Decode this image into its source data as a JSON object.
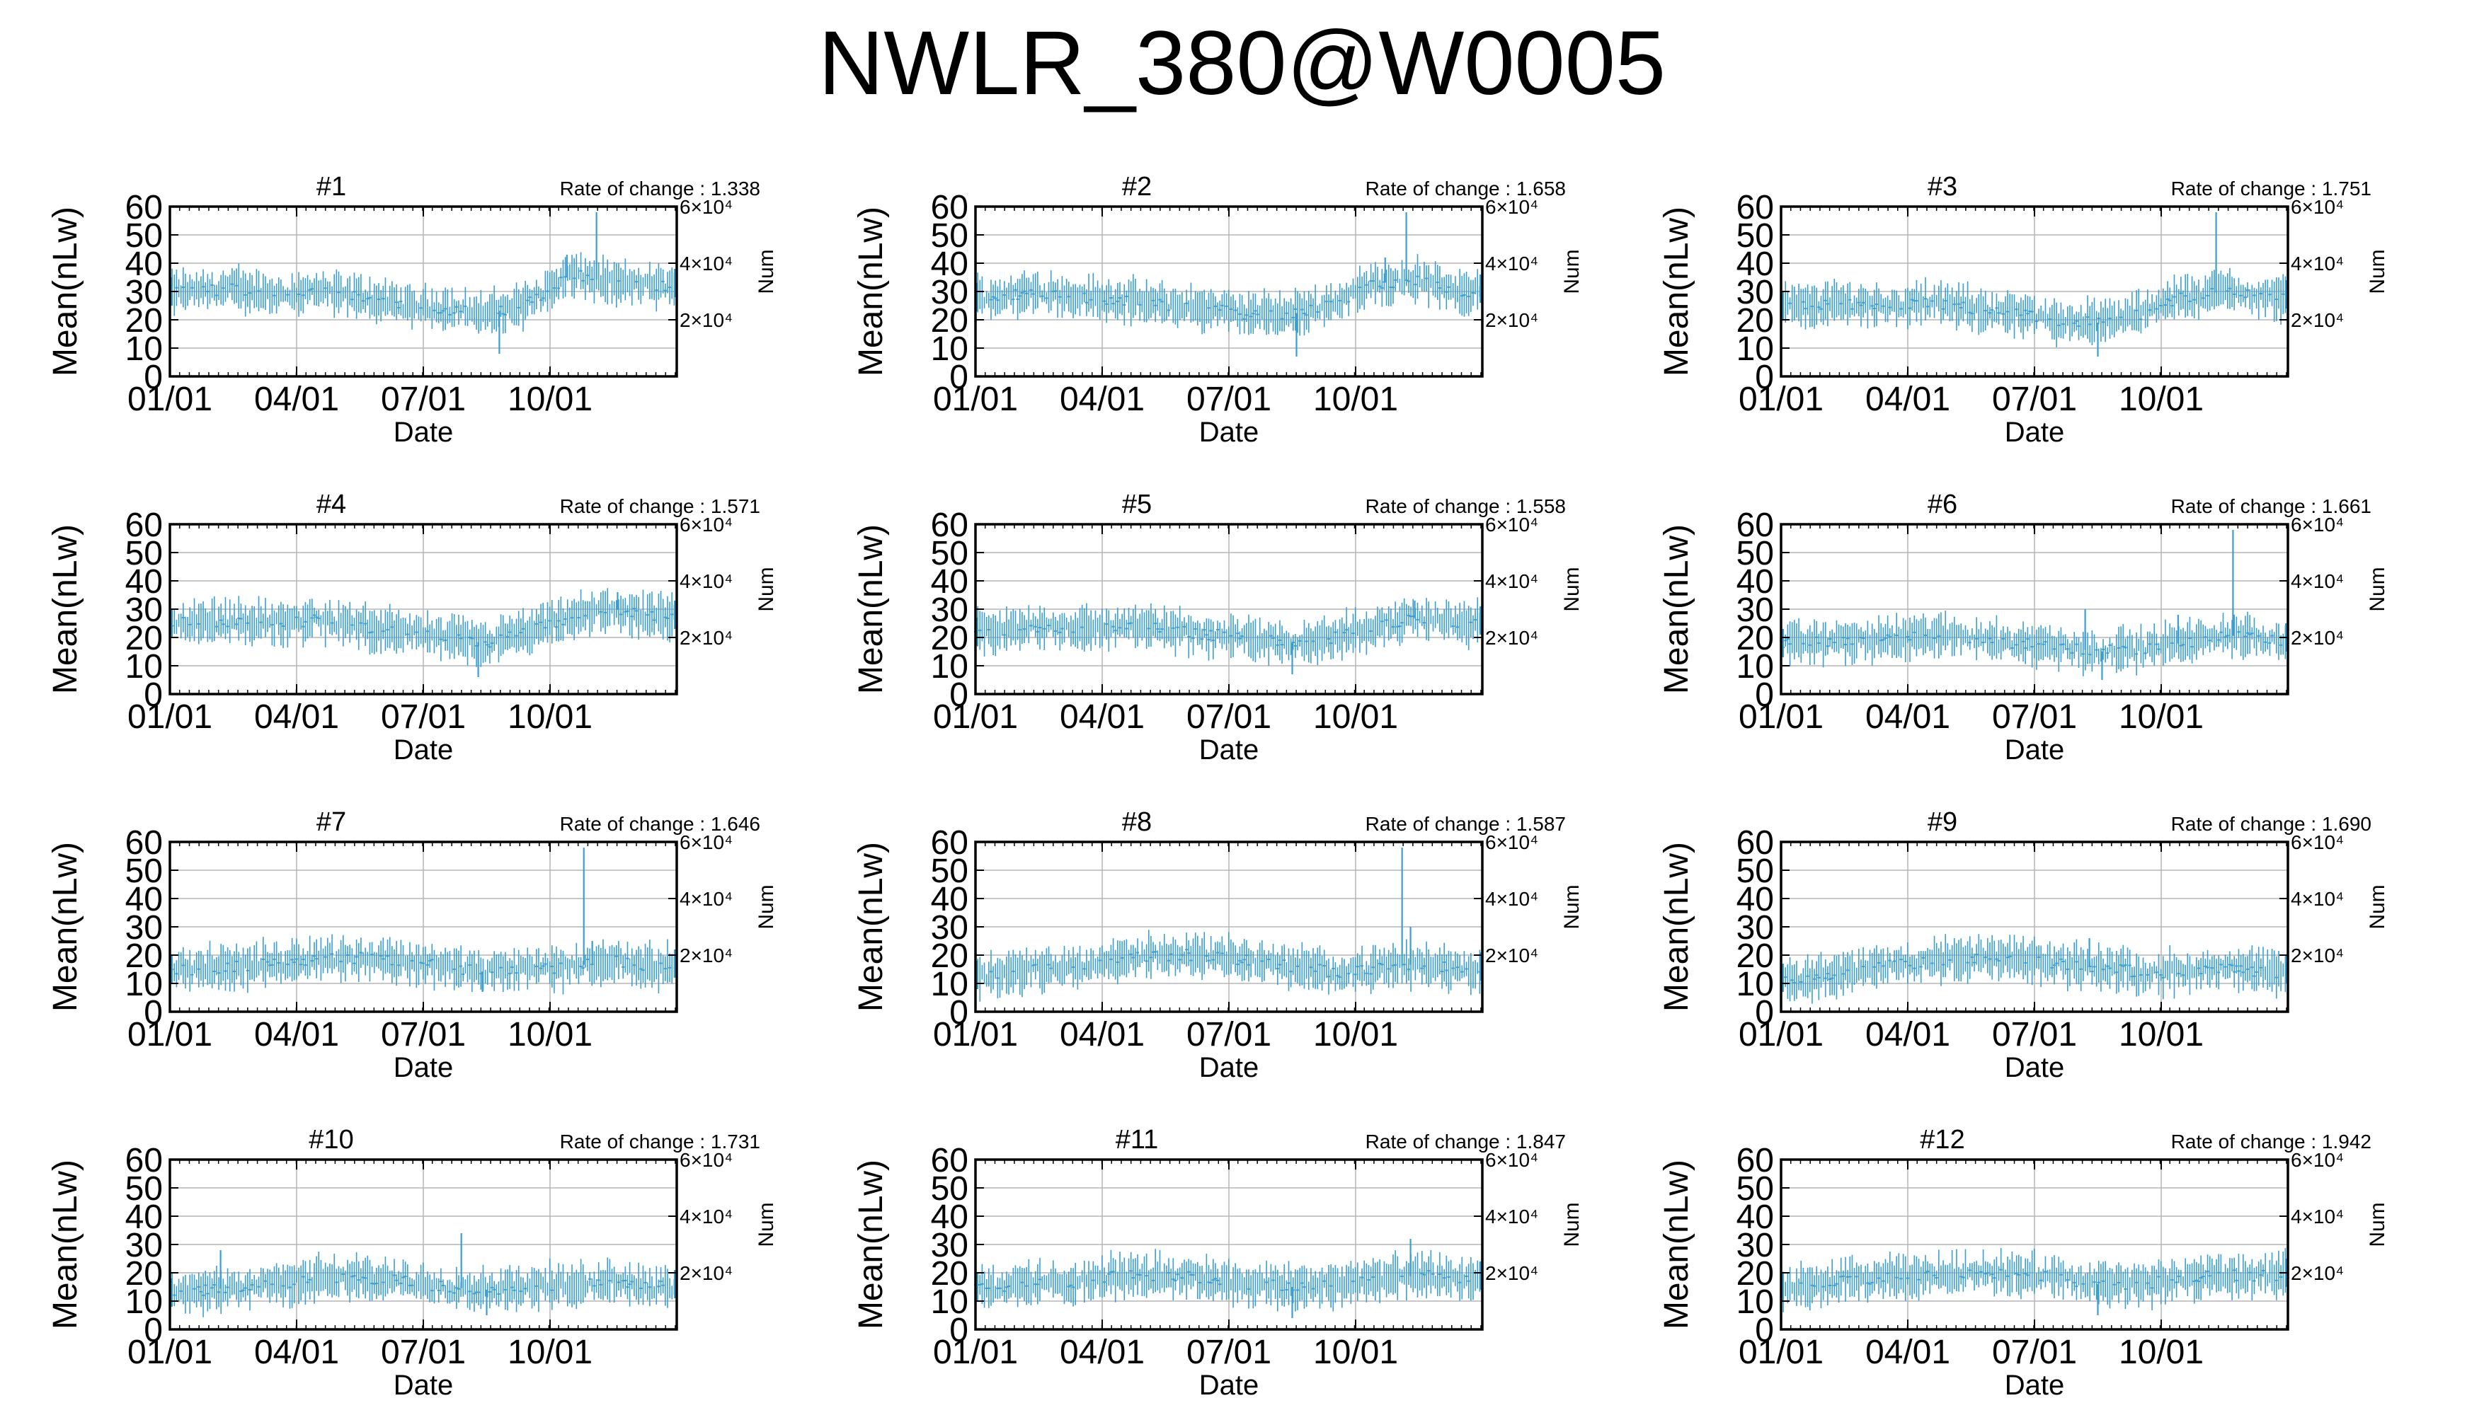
{
  "title": "NWLR_380@W0005",
  "colors": {
    "series": "#3a9fd0",
    "axis": "#000000",
    "grid": "#b5b5b5",
    "background": "#ffffff"
  },
  "chart_data": [
    {
      "type": "line",
      "panel_title": "#1",
      "annotation": "Rate of change : 1.338",
      "xlabel": "Date",
      "ylabel": "Mean(nLw)",
      "y2label": "Num",
      "x_ticks": [
        "01/01",
        "04/01",
        "07/01",
        "10/01"
      ],
      "y_ticks": [
        "0",
        "10",
        "20",
        "30",
        "40",
        "50",
        "60"
      ],
      "y2_ticks": [
        "2×10⁴",
        "4×10⁴",
        "6×10⁴"
      ],
      "ylim": [
        0,
        60
      ],
      "grid": true,
      "series": [
        {
          "values": [
            30,
            31,
            29,
            30,
            28,
            25,
            24,
            22,
            26,
            36,
            33,
            32
          ],
          "spikes": [
            {
              "month": 10.1,
              "value": 58
            },
            {
              "month": 9.4,
              "value": 43
            },
            {
              "month": 7.8,
              "value": 8
            }
          ]
        }
      ]
    },
    {
      "type": "line",
      "panel_title": "#2",
      "annotation": "Rate of change : 1.658",
      "xlabel": "Date",
      "ylabel": "Mean(nLw)",
      "y2label": "Num",
      "x_ticks": [
        "01/01",
        "04/01",
        "07/01",
        "10/01"
      ],
      "y_ticks": [
        "0",
        "10",
        "20",
        "30",
        "40",
        "50",
        "60"
      ],
      "y2_ticks": [
        "2×10⁴",
        "4×10⁴",
        "6×10⁴"
      ],
      "ylim": [
        0,
        60
      ],
      "grid": true,
      "series": [
        {
          "values": [
            28,
            30,
            28,
            27,
            25,
            24,
            22,
            22,
            26,
            33,
            34,
            30
          ],
          "spikes": [
            {
              "month": 10.2,
              "value": 58
            },
            {
              "month": 9.7,
              "value": 42
            },
            {
              "month": 7.6,
              "value": 7
            }
          ]
        }
      ]
    },
    {
      "type": "line",
      "panel_title": "#3",
      "annotation": "Rate of change : 1.751",
      "xlabel": "Date",
      "ylabel": "Mean(nLw)",
      "y2label": "Num",
      "x_ticks": [
        "01/01",
        "04/01",
        "07/01",
        "10/01"
      ],
      "y_ticks": [
        "0",
        "10",
        "20",
        "30",
        "40",
        "50",
        "60"
      ],
      "y2_ticks": [
        "2×10⁴",
        "4×10⁴",
        "6×10⁴"
      ],
      "ylim": [
        0,
        60
      ],
      "grid": true,
      "series": [
        {
          "values": [
            25,
            26,
            25,
            26,
            24,
            22,
            20,
            19,
            22,
            28,
            30,
            28
          ],
          "spikes": [
            {
              "month": 10.3,
              "value": 58
            },
            {
              "month": 7.5,
              "value": 7
            }
          ]
        }
      ]
    },
    {
      "type": "line",
      "panel_title": "#4",
      "annotation": "Rate of change : 1.571",
      "xlabel": "Date",
      "ylabel": "Mean(nLw)",
      "y2label": "Num",
      "x_ticks": [
        "01/01",
        "04/01",
        "07/01",
        "10/01"
      ],
      "y_ticks": [
        "0",
        "10",
        "20",
        "30",
        "40",
        "50",
        "60"
      ],
      "y2_ticks": [
        "2×10⁴",
        "4×10⁴",
        "6×10⁴"
      ],
      "ylim": [
        0,
        60
      ],
      "grid": true,
      "series": [
        {
          "values": [
            25,
            26,
            25,
            26,
            24,
            22,
            20,
            18,
            22,
            27,
            30,
            27
          ],
          "spikes": [
            {
              "month": 10.6,
              "value": 36
            },
            {
              "month": 7.3,
              "value": 6
            }
          ]
        }
      ]
    },
    {
      "type": "line",
      "panel_title": "#5",
      "annotation": "Rate of change : 1.558",
      "xlabel": "Date",
      "ylabel": "Mean(nLw)",
      "y2label": "Num",
      "x_ticks": [
        "01/01",
        "04/01",
        "07/01",
        "10/01"
      ],
      "y_ticks": [
        "0",
        "10",
        "20",
        "30",
        "40",
        "50",
        "60"
      ],
      "y2_ticks": [
        "2×10⁴",
        "4×10⁴",
        "6×10⁴"
      ],
      "ylim": [
        0,
        60
      ],
      "grid": true,
      "series": [
        {
          "values": [
            22,
            24,
            23,
            24,
            23,
            21,
            20,
            18,
            20,
            24,
            27,
            25
          ],
          "spikes": [
            {
              "month": 10.4,
              "value": 33
            },
            {
              "month": 7.5,
              "value": 7
            }
          ]
        }
      ]
    },
    {
      "type": "line",
      "panel_title": "#6",
      "annotation": "Rate of change : 1.661",
      "xlabel": "Date",
      "ylabel": "Mean(nLw)",
      "y2label": "Num",
      "x_ticks": [
        "01/01",
        "04/01",
        "07/01",
        "10/01"
      ],
      "y_ticks": [
        "0",
        "10",
        "20",
        "30",
        "40",
        "50",
        "60"
      ],
      "y2_ticks": [
        "2×10⁴",
        "4×10⁴",
        "6×10⁴"
      ],
      "ylim": [
        0,
        60
      ],
      "grid": true,
      "series": [
        {
          "values": [
            18,
            19,
            19,
            21,
            20,
            18,
            17,
            15,
            16,
            18,
            21,
            19
          ],
          "spikes": [
            {
              "month": 10.7,
              "value": 58
            },
            {
              "month": 7.2,
              "value": 30
            },
            {
              "month": 9.4,
              "value": 28
            },
            {
              "month": 7.6,
              "value": 5
            }
          ]
        }
      ]
    },
    {
      "type": "line",
      "panel_title": "#7",
      "annotation": "Rate of change : 1.646",
      "xlabel": "Date",
      "ylabel": "Mean(nLw)",
      "y2label": "Num",
      "x_ticks": [
        "01/01",
        "04/01",
        "07/01",
        "10/01"
      ],
      "y_ticks": [
        "0",
        "10",
        "20",
        "30",
        "40",
        "50",
        "60"
      ],
      "y2_ticks": [
        "2×10⁴",
        "4×10⁴",
        "6×10⁴"
      ],
      "ylim": [
        0,
        60
      ],
      "grid": true,
      "series": [
        {
          "values": [
            15,
            16,
            17,
            19,
            19,
            18,
            16,
            14,
            15,
            16,
            18,
            16
          ],
          "spikes": [
            {
              "month": 9.8,
              "value": 58
            },
            {
              "month": 10.0,
              "value": 25
            },
            {
              "month": 7.4,
              "value": 7
            }
          ]
        }
      ]
    },
    {
      "type": "line",
      "panel_title": "#8",
      "annotation": "Rate of change : 1.587",
      "xlabel": "Date",
      "ylabel": "Mean(nLw)",
      "y2label": "Num",
      "x_ticks": [
        "01/01",
        "04/01",
        "07/01",
        "10/01"
      ],
      "y_ticks": [
        "0",
        "10",
        "20",
        "30",
        "40",
        "50",
        "60"
      ],
      "y2_ticks": [
        "2×10⁴",
        "4×10⁴",
        "6×10⁴"
      ],
      "ylim": [
        0,
        60
      ],
      "grid": true,
      "series": [
        {
          "values": [
            13,
            15,
            16,
            19,
            20,
            20,
            18,
            16,
            14,
            15,
            17,
            15
          ],
          "spikes": [
            {
              "month": 10.1,
              "value": 58
            },
            {
              "month": 10.3,
              "value": 30
            }
          ]
        }
      ]
    },
    {
      "type": "line",
      "panel_title": "#9",
      "annotation": "Rate of change : 1.690",
      "xlabel": "Date",
      "ylabel": "Mean(nLw)",
      "y2label": "Num",
      "x_ticks": [
        "01/01",
        "04/01",
        "07/01",
        "10/01"
      ],
      "y_ticks": [
        "0",
        "10",
        "20",
        "30",
        "40",
        "50",
        "60"
      ],
      "y2_ticks": [
        "2×10⁴",
        "4×10⁴",
        "6×10⁴"
      ],
      "ylim": [
        0,
        60
      ],
      "grid": true,
      "series": [
        {
          "values": [
            12,
            14,
            16,
            18,
            19,
            19,
            17,
            16,
            14,
            14,
            15,
            14
          ],
          "spikes": [
            {
              "month": 7.3,
              "value": 26
            }
          ]
        }
      ]
    },
    {
      "type": "line",
      "panel_title": "#10",
      "annotation": "Rate of change : 1.731",
      "xlabel": "Date",
      "ylabel": "Mean(nLw)",
      "y2label": "Num",
      "x_ticks": [
        "01/01",
        "04/01",
        "07/01",
        "10/01"
      ],
      "y_ticks": [
        "0",
        "10",
        "20",
        "30",
        "40",
        "50",
        "60"
      ],
      "y2_ticks": [
        "2×10⁴",
        "4×10⁴",
        "6×10⁴"
      ],
      "ylim": [
        0,
        60
      ],
      "grid": true,
      "series": [
        {
          "values": [
            13,
            15,
            16,
            18,
            18,
            17,
            15,
            14,
            15,
            16,
            17,
            15
          ],
          "spikes": [
            {
              "month": 6.9,
              "value": 34
            },
            {
              "month": 1.2,
              "value": 28
            },
            {
              "month": 7.5,
              "value": 5
            }
          ]
        }
      ]
    },
    {
      "type": "line",
      "panel_title": "#11",
      "annotation": "Rate of change : 1.847",
      "xlabel": "Date",
      "ylabel": "Mean(nLw)",
      "y2label": "Num",
      "x_ticks": [
        "01/01",
        "04/01",
        "07/01",
        "10/01"
      ],
      "y_ticks": [
        "0",
        "10",
        "20",
        "30",
        "40",
        "50",
        "60"
      ],
      "y2_ticks": [
        "2×10⁴",
        "4×10⁴",
        "6×10⁴"
      ],
      "ylim": [
        0,
        60
      ],
      "grid": true,
      "series": [
        {
          "values": [
            15,
            16,
            17,
            19,
            19,
            18,
            16,
            15,
            16,
            18,
            19,
            18
          ],
          "spikes": [
            {
              "month": 10.3,
              "value": 32
            },
            {
              "month": 7.5,
              "value": 4
            }
          ]
        }
      ]
    },
    {
      "type": "line",
      "panel_title": "#12",
      "annotation": "Rate of change : 1.942",
      "xlabel": "Date",
      "ylabel": "Mean(nLw)",
      "y2label": "Num",
      "x_ticks": [
        "01/01",
        "04/01",
        "07/01",
        "10/01"
      ],
      "y_ticks": [
        "0",
        "10",
        "20",
        "30",
        "40",
        "50",
        "60"
      ],
      "y2_ticks": [
        "2×10⁴",
        "4×10⁴",
        "6×10⁴"
      ],
      "ylim": [
        0,
        60
      ],
      "grid": true,
      "series": [
        {
          "values": [
            15,
            17,
            18,
            19,
            20,
            20,
            18,
            16,
            16,
            18,
            19,
            19
          ],
          "spikes": [
            {
              "month": 7.5,
              "value": 5
            }
          ]
        }
      ]
    }
  ]
}
